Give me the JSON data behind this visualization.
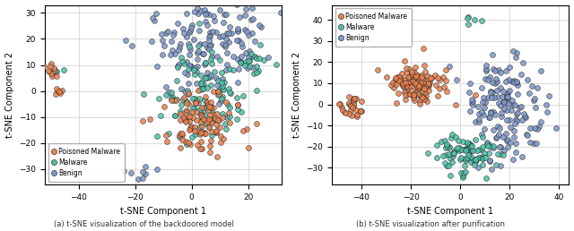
{
  "plot1": {
    "xlabel": "t-SNE Component 1",
    "ylabel": "t-SNE Component 2",
    "xlim": [
      -52,
      32
    ],
    "ylim": [
      -36,
      33
    ],
    "xticks": [
      -40,
      -20,
      0,
      20
    ],
    "yticks": [
      -30,
      -20,
      -10,
      0,
      10,
      20,
      30
    ],
    "legend_loc": "lower left",
    "caption": "(a) t-SNE visualization of the backdoored model"
  },
  "plot2": {
    "xlabel": "t-SNE Component 1",
    "ylabel": "t-SNE Component 2",
    "xlim": [
      -52,
      44
    ],
    "ylim": [
      -38,
      47
    ],
    "xticks": [
      -40,
      -20,
      0,
      20,
      40
    ],
    "yticks": [
      -30,
      -20,
      -10,
      0,
      10,
      20,
      30,
      40
    ],
    "legend_loc": "upper right",
    "caption": "(b) t-SNE visualization after purification"
  },
  "colors": {
    "poisoned": "#E8804E",
    "malware": "#4DBFA8",
    "benign": "#7B96C8"
  },
  "marker_size": 18,
  "alpha": 0.85,
  "edge_color": "#222222",
  "edge_width": 0.4
}
